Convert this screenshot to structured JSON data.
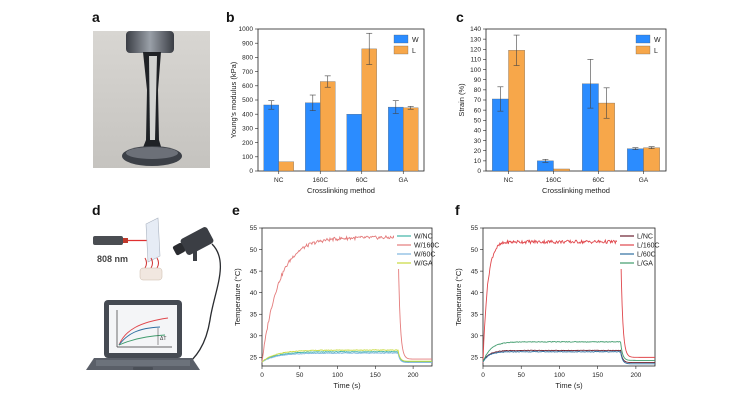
{
  "panel_letters": [
    "a",
    "b",
    "c",
    "d",
    "e",
    "f"
  ],
  "laser_label": "808 nm",
  "delta_t_label": "ΔT",
  "colors": {
    "bar_w": "#2b8cff",
    "bar_l": "#f7a74a",
    "W_NC": "#3fb3a7",
    "W_160C": "#e47b7b",
    "W_60C": "#7fb6e0",
    "W_GA": "#c7d93d",
    "L_NC": "#6b1f2e",
    "L_160C": "#e0474c",
    "L_60C": "#2f6fa0",
    "L_GA": "#3f9b6c"
  },
  "chart_data": [
    {
      "id": "b",
      "type": "bar",
      "categories": [
        "NC",
        "160C",
        "60C",
        "GA"
      ],
      "series": [
        {
          "name": "W",
          "values": [
            465,
            480,
            400,
            450
          ],
          "errors": [
            30,
            55,
            0,
            45
          ]
        },
        {
          "name": "L",
          "values": [
            65,
            630,
            860,
            445
          ],
          "errors": [
            0,
            40,
            110,
            10
          ]
        }
      ],
      "xlabel": "Crosslinking method",
      "ylabel": "Young's modulus (kPa)",
      "ylim": [
        0,
        1000
      ],
      "yticks": [
        "0",
        "100",
        "200",
        "300",
        "400",
        "500",
        "600",
        "700",
        "800",
        "900",
        "1000"
      ],
      "legend": [
        "W",
        "L"
      ]
    },
    {
      "id": "c",
      "type": "bar",
      "categories": [
        "NC",
        "160C",
        "60C",
        "GA"
      ],
      "series": [
        {
          "name": "W",
          "values": [
            71,
            10,
            86,
            22
          ],
          "errors": [
            12,
            1.5,
            24,
            1
          ]
        },
        {
          "name": "L",
          "values": [
            119,
            2,
            67,
            23
          ],
          "errors": [
            15,
            0,
            15,
            1
          ]
        }
      ],
      "xlabel": "Crosslinking method",
      "ylabel": "Strain (%)",
      "ylim": [
        0,
        140
      ],
      "yticks": [
        "0",
        "10",
        "20",
        "30",
        "40",
        "50",
        "60",
        "70",
        "80",
        "90",
        "100",
        "110",
        "120",
        "130",
        "140"
      ],
      "legend": [
        "W",
        "L"
      ]
    },
    {
      "id": "e",
      "type": "line",
      "xlabel": "Time (s)",
      "ylabel": "Temperature (°C)",
      "xlim": [
        0,
        225
      ],
      "ylim": [
        23,
        55
      ],
      "xticks": [
        "0",
        "50",
        "100",
        "150",
        "200"
      ],
      "yticks": [
        "25",
        "30",
        "35",
        "40",
        "45",
        "50",
        "55"
      ],
      "series": [
        {
          "name": "W/NC",
          "color_key": "W_NC",
          "plateau": 26.3,
          "tau": 20,
          "end": 24.0
        },
        {
          "name": "W/160C",
          "color_key": "W_160C",
          "plateau": 52.8,
          "tau": 22,
          "end": 24.6
        },
        {
          "name": "W/60C",
          "color_key": "W_60C",
          "plateau": 26.0,
          "tau": 20,
          "end": 23.8
        },
        {
          "name": "W/GA",
          "color_key": "W_GA",
          "plateau": 26.7,
          "tau": 20,
          "end": 24.1
        }
      ],
      "start": 24.0,
      "off_time": 180
    },
    {
      "id": "f",
      "type": "line",
      "xlabel": "Time (s)",
      "ylabel": "Temperature (°C)",
      "xlim": [
        0,
        225
      ],
      "ylim": [
        23,
        55
      ],
      "xticks": [
        "0",
        "50",
        "100",
        "150",
        "200"
      ],
      "yticks": [
        "25",
        "30",
        "35",
        "40",
        "45",
        "50",
        "55"
      ],
      "series": [
        {
          "name": "L/NC",
          "color_key": "L_NC",
          "plateau": 26.6,
          "tau": 8,
          "end": 23.8
        },
        {
          "name": "L/160C",
          "color_key": "L_160C",
          "plateau": 51.8,
          "tau": 6,
          "end": 25.0
        },
        {
          "name": "L/60C",
          "color_key": "L_60C",
          "plateau": 26.3,
          "tau": 8,
          "end": 23.5
        },
        {
          "name": "L/GA",
          "color_key": "L_GA",
          "plateau": 28.6,
          "tau": 10,
          "end": 24.3
        }
      ],
      "start": 24.0,
      "off_time": 180
    }
  ]
}
